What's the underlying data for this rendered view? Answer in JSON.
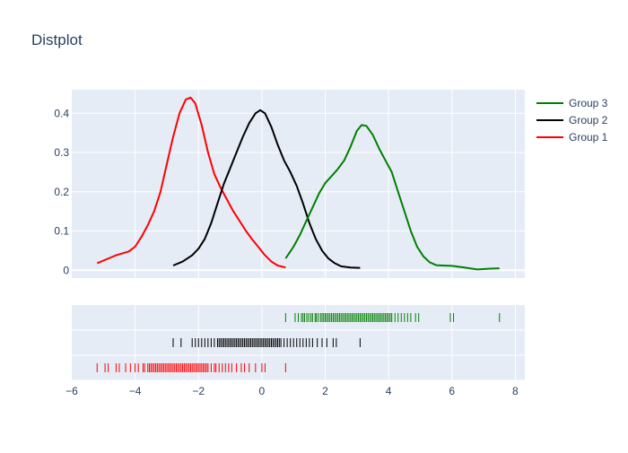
{
  "chart_data": {
    "type": "line",
    "title": "Distplot",
    "xlabel": "",
    "ylabel": "",
    "xlim": [
      -6,
      8.3
    ],
    "ylim": [
      -0.02,
      0.46
    ],
    "x_ticks": [
      -6,
      -4,
      -2,
      0,
      2,
      4,
      6,
      8
    ],
    "y_ticks": [
      0,
      0.1,
      0.2,
      0.3,
      0.4
    ],
    "x_tick_labels": [
      "−6",
      "−4",
      "−2",
      "0",
      "2",
      "4",
      "6",
      "8"
    ],
    "y_tick_labels": [
      "0",
      "0.1",
      "0.2",
      "0.3",
      "0.4"
    ],
    "grid": true,
    "legend_position": "top-right",
    "series": [
      {
        "name": "Group 1",
        "color": "#ff0000",
        "x": [
          -5.2,
          -4.9,
          -4.6,
          -4.2,
          -4.0,
          -3.8,
          -3.6,
          -3.4,
          -3.2,
          -3.0,
          -2.8,
          -2.6,
          -2.4,
          -2.25,
          -2.1,
          -1.9,
          -1.7,
          -1.5,
          -1.3,
          -1.1,
          -0.9,
          -0.7,
          -0.5,
          -0.3,
          -0.1,
          0.1,
          0.3,
          0.5,
          0.75
        ],
        "y": [
          0.018,
          0.028,
          0.038,
          0.048,
          0.06,
          0.085,
          0.115,
          0.15,
          0.2,
          0.27,
          0.34,
          0.4,
          0.435,
          0.44,
          0.425,
          0.37,
          0.3,
          0.245,
          0.21,
          0.18,
          0.15,
          0.125,
          0.1,
          0.078,
          0.058,
          0.038,
          0.022,
          0.012,
          0.007
        ]
      },
      {
        "name": "Group 2",
        "color": "#000000",
        "x": [
          -2.8,
          -2.5,
          -2.2,
          -2.0,
          -1.8,
          -1.6,
          -1.4,
          -1.2,
          -1.0,
          -0.8,
          -0.6,
          -0.4,
          -0.2,
          -0.05,
          0.1,
          0.3,
          0.5,
          0.7,
          0.9,
          1.1,
          1.3,
          1.5,
          1.7,
          1.9,
          2.1,
          2.3,
          2.5,
          2.8,
          3.1
        ],
        "y": [
          0.012,
          0.022,
          0.038,
          0.055,
          0.08,
          0.12,
          0.17,
          0.22,
          0.26,
          0.3,
          0.34,
          0.375,
          0.4,
          0.408,
          0.4,
          0.365,
          0.32,
          0.28,
          0.25,
          0.215,
          0.17,
          0.12,
          0.08,
          0.05,
          0.03,
          0.018,
          0.01,
          0.007,
          0.006
        ]
      },
      {
        "name": "Group 3",
        "color": "#008000",
        "x": [
          0.75,
          1.0,
          1.2,
          1.4,
          1.6,
          1.8,
          2.0,
          2.2,
          2.4,
          2.6,
          2.8,
          3.0,
          3.15,
          3.3,
          3.5,
          3.7,
          3.9,
          4.1,
          4.3,
          4.5,
          4.7,
          4.9,
          5.1,
          5.3,
          5.5,
          5.7,
          6.0,
          6.4,
          6.8,
          7.2,
          7.5
        ],
        "y": [
          0.03,
          0.06,
          0.09,
          0.125,
          0.16,
          0.195,
          0.222,
          0.24,
          0.258,
          0.28,
          0.315,
          0.355,
          0.37,
          0.368,
          0.345,
          0.31,
          0.28,
          0.25,
          0.2,
          0.15,
          0.1,
          0.06,
          0.035,
          0.02,
          0.013,
          0.012,
          0.011,
          0.007,
          0.002,
          0.004,
          0.005
        ]
      }
    ],
    "rug": [
      {
        "name": "Group 3",
        "color": "#008000",
        "x": [
          0.75,
          1.05,
          1.15,
          1.25,
          1.3,
          1.35,
          1.42,
          1.48,
          1.55,
          1.6,
          1.68,
          1.72,
          1.78,
          1.85,
          1.9,
          1.95,
          2.0,
          2.05,
          2.1,
          2.15,
          2.2,
          2.25,
          2.3,
          2.35,
          2.4,
          2.45,
          2.5,
          2.55,
          2.6,
          2.65,
          2.7,
          2.75,
          2.8,
          2.85,
          2.9,
          2.95,
          3.0,
          3.05,
          3.1,
          3.15,
          3.2,
          3.25,
          3.3,
          3.35,
          3.4,
          3.45,
          3.5,
          3.55,
          3.6,
          3.65,
          3.7,
          3.75,
          3.8,
          3.85,
          3.9,
          3.95,
          4.0,
          4.05,
          4.1,
          4.2,
          4.3,
          4.4,
          4.5,
          4.6,
          4.7,
          4.85,
          4.95,
          5.95,
          6.05,
          7.5
        ]
      },
      {
        "name": "Group 2",
        "color": "#000000",
        "x": [
          -2.8,
          -2.55,
          -2.2,
          -2.1,
          -2.0,
          -1.9,
          -1.8,
          -1.7,
          -1.6,
          -1.5,
          -1.4,
          -1.35,
          -1.3,
          -1.25,
          -1.2,
          -1.15,
          -1.1,
          -1.05,
          -1.0,
          -0.95,
          -0.9,
          -0.85,
          -0.8,
          -0.75,
          -0.7,
          -0.65,
          -0.6,
          -0.55,
          -0.5,
          -0.45,
          -0.4,
          -0.35,
          -0.3,
          -0.25,
          -0.2,
          -0.15,
          -0.1,
          -0.05,
          0.0,
          0.05,
          0.1,
          0.15,
          0.2,
          0.25,
          0.3,
          0.35,
          0.4,
          0.45,
          0.5,
          0.55,
          0.6,
          0.7,
          0.8,
          0.9,
          1.0,
          1.1,
          1.2,
          1.3,
          1.4,
          1.5,
          1.6,
          1.75,
          1.9,
          2.05,
          2.25,
          2.35,
          3.1
        ]
      },
      {
        "name": "Group 1",
        "color": "#ff0000",
        "x": [
          -5.2,
          -4.95,
          -4.85,
          -4.6,
          -4.5,
          -4.3,
          -4.15,
          -4.0,
          -3.9,
          -3.75,
          -3.7,
          -3.6,
          -3.55,
          -3.5,
          -3.45,
          -3.4,
          -3.35,
          -3.3,
          -3.25,
          -3.2,
          -3.15,
          -3.1,
          -3.05,
          -3.0,
          -2.95,
          -2.9,
          -2.85,
          -2.8,
          -2.75,
          -2.7,
          -2.65,
          -2.6,
          -2.55,
          -2.5,
          -2.45,
          -2.4,
          -2.35,
          -2.3,
          -2.25,
          -2.2,
          -2.15,
          -2.1,
          -2.05,
          -2.0,
          -1.95,
          -1.9,
          -1.85,
          -1.8,
          -1.75,
          -1.7,
          -1.6,
          -1.5,
          -1.45,
          -1.35,
          -1.25,
          -1.15,
          -1.05,
          -0.95,
          -0.8,
          -0.65,
          -0.55,
          -0.4,
          -0.2,
          0.0,
          0.1,
          0.75
        ]
      }
    ]
  }
}
